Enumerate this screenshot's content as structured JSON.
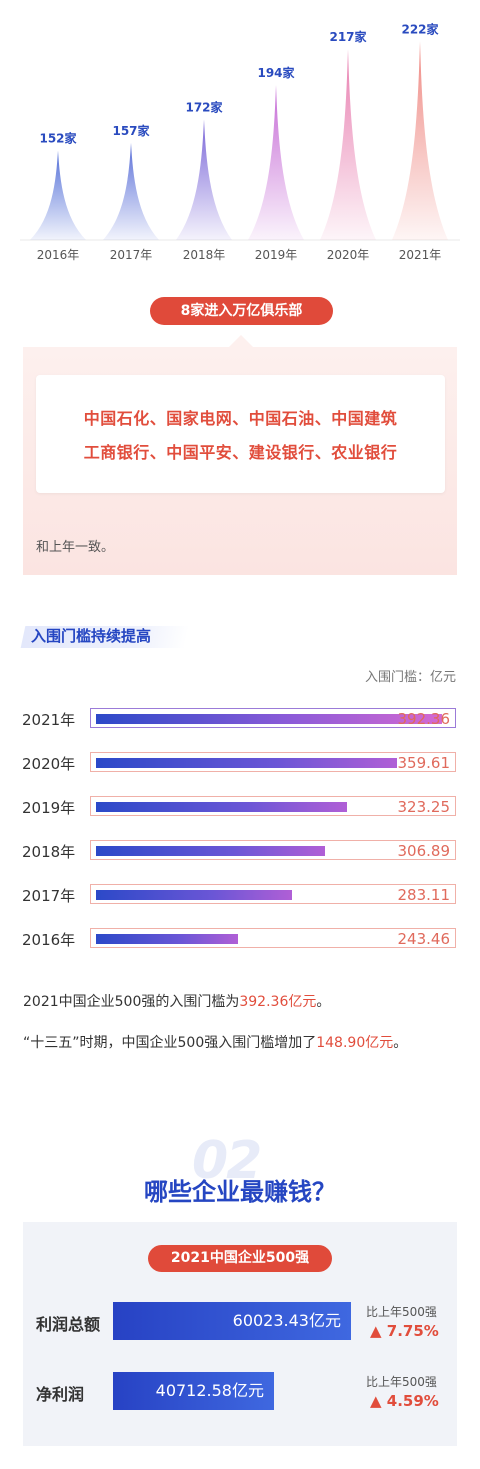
{
  "chart_data": [
    {
      "type": "bar",
      "categories": [
        "2016年",
        "2017年",
        "2018年",
        "2019年",
        "2020年",
        "2021年"
      ],
      "values": [
        152,
        157,
        172,
        194,
        217,
        222
      ],
      "value_labels": [
        "152家",
        "157家",
        "172家",
        "194家",
        "217家",
        "222家"
      ],
      "colors": [
        "#5470d8",
        "#5a6fd8",
        "#7a66d8",
        "#c66cd6",
        "#e87fb0",
        "#ef8a84"
      ]
    },
    {
      "type": "bar",
      "orientation": "horizontal",
      "title": "入围门槛持续提高",
      "unit": "入围门槛：亿元",
      "categories": [
        "2021年",
        "2020年",
        "2019年",
        "2018年",
        "2017年",
        "2016年"
      ],
      "values": [
        392.36,
        359.61,
        323.25,
        306.89,
        283.11,
        243.46
      ],
      "value_labels": [
        "392.36",
        "359.61",
        "323.25",
        "306.89",
        "283.11",
        "243.46"
      ]
    },
    {
      "type": "bar",
      "orientation": "horizontal",
      "title": "2021中国企业500强",
      "categories": [
        "利润总额",
        "净利润"
      ],
      "values": [
        60023.43,
        40712.58
      ],
      "value_labels": [
        "60023.43亿元",
        "40712.58亿元"
      ],
      "comparison_label": "比上年500强",
      "changes": [
        "▲ 7.75%",
        "▲ 4.59%"
      ]
    }
  ],
  "club": {
    "badge": "8家进入万亿俱乐部",
    "line1": "中国石化、国家电网、中国石油、中国建筑",
    "line2": "工商银行、中国平安、建设银行、农业银行",
    "note": "和上年一致。"
  },
  "threshold_text": {
    "p1_a": "2021中国企业500强的入围门槛为",
    "p1_hl": "392.36亿元",
    "p1_b": "。",
    "p2_a": "“十三五”时期，中国企业500强入围门槛增加了",
    "p2_hl": "148.90亿元",
    "p2_b": "。"
  },
  "section2": {
    "number": "02",
    "question": "哪些企业最赚钱？"
  }
}
